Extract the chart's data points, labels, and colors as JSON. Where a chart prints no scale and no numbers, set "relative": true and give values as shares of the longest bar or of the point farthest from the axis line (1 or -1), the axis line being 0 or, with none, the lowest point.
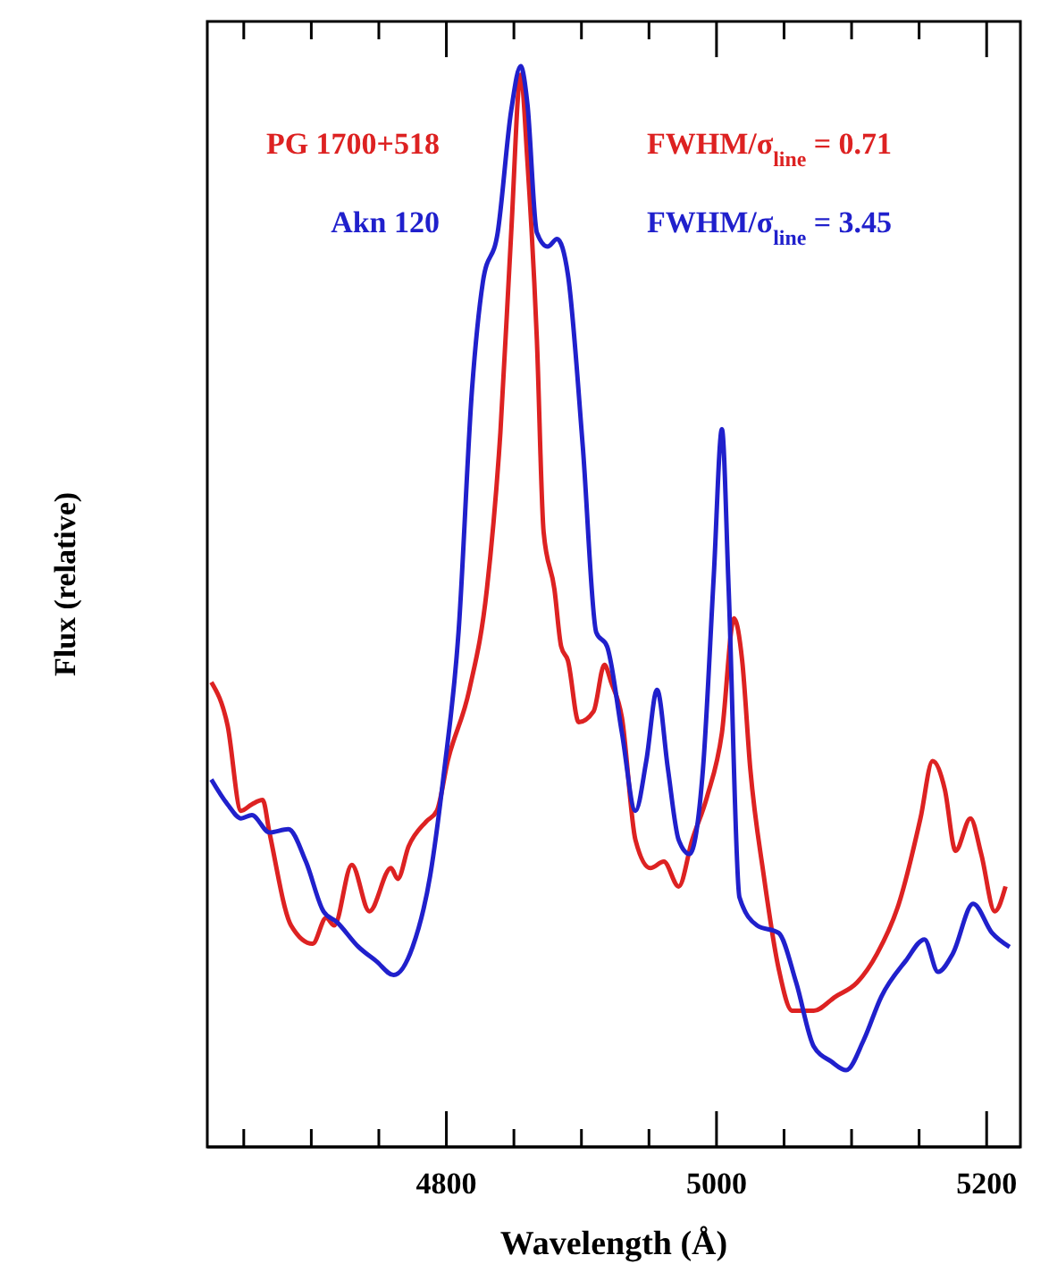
{
  "chart_data": {
    "type": "line",
    "relative": true,
    "xlabel": "Wavelength (Å)",
    "ylabel": "Flux (relative)",
    "xlim": [
      4623,
      5225
    ],
    "xticks": [
      {
        "value": 4650,
        "label": null
      },
      {
        "value": 4700,
        "label": null
      },
      {
        "value": 4750,
        "label": null
      },
      4800,
      {
        "value": 4850,
        "label": null
      },
      {
        "value": 4900,
        "label": null
      },
      {
        "value": 4950,
        "label": null
      },
      5000,
      {
        "value": 5050,
        "label": null
      },
      {
        "value": 5100,
        "label": null
      },
      {
        "value": 5150,
        "label": null
      },
      5200
    ],
    "legend": "top left",
    "grid": false,
    "marker": "none",
    "line_style": "solid",
    "annotations": [
      "FWHM/σ$_{line}$ = 0.71",
      "FWHM/σ$_{line}$ = 3.45"
    ],
    "series": [
      {
        "name": "PG 1700+518",
        "color": "#dd2222",
        "x": [
          4626,
          4638,
          4648,
          4656,
          4664,
          4669,
          4685,
          4701,
          4711,
          4717,
          4730,
          4743,
          4759,
          4764,
          4772,
          4785,
          4793,
          4801,
          4817,
          4830,
          4840,
          4848,
          4855,
          4860,
          4867,
          4872,
          4880,
          4885,
          4890,
          4898,
          4909,
          4917,
          4922,
          4930,
          4940,
          4951,
          4961,
          4972,
          4982,
          4993,
          5004,
          5013,
          5019,
          5025,
          5035,
          5046,
          5056,
          5072,
          5088,
          5104,
          5119,
          5135,
          5151,
          5160,
          5169,
          5177,
          5188,
          5196,
          5206,
          5214
        ],
        "values": [
          0.43,
          0.39,
          0.311,
          0.317,
          0.321,
          0.291,
          0.205,
          0.188,
          0.212,
          0.205,
          0.261,
          0.218,
          0.258,
          0.248,
          0.278,
          0.301,
          0.311,
          0.357,
          0.423,
          0.516,
          0.661,
          0.846,
          0.992,
          0.912,
          0.747,
          0.569,
          0.516,
          0.463,
          0.45,
          0.393,
          0.403,
          0.446,
          0.43,
          0.397,
          0.284,
          0.258,
          0.264,
          0.241,
          0.284,
          0.324,
          0.383,
          0.489,
          0.45,
          0.35,
          0.251,
          0.165,
          0.126,
          0.126,
          0.139,
          0.152,
          0.179,
          0.225,
          0.304,
          0.357,
          0.331,
          0.274,
          0.304,
          0.271,
          0.218,
          0.241
        ]
      },
      {
        "name": "Akn 120",
        "color": "#2020cc",
        "x": [
          4626,
          4638,
          4648,
          4656,
          4669,
          4683,
          4696,
          4709,
          4719,
          4735,
          4748,
          4761,
          4775,
          4788,
          4798,
          4809,
          4819,
          4827,
          4838,
          4848,
          4855,
          4860,
          4867,
          4875,
          4882,
          4890,
          4901,
          4911,
          4919,
          4930,
          4940,
          4948,
          4956,
          4964,
          4972,
          4980,
          4990,
          4998,
          5004,
          5009,
          5017,
          5030,
          5046,
          5059,
          5072,
          5085,
          5096,
          5109,
          5122,
          5140,
          5154,
          5164,
          5175,
          5190,
          5204,
          5217
        ],
        "values": [
          0.34,
          0.317,
          0.304,
          0.307,
          0.291,
          0.294,
          0.264,
          0.218,
          0.208,
          0.185,
          0.172,
          0.159,
          0.185,
          0.251,
          0.344,
          0.476,
          0.701,
          0.8,
          0.846,
          0.959,
          1,
          0.965,
          0.846,
          0.833,
          0.84,
          0.807,
          0.648,
          0.476,
          0.463,
          0.383,
          0.311,
          0.357,
          0.423,
          0.35,
          0.284,
          0.271,
          0.35,
          0.529,
          0.664,
          0.516,
          0.231,
          0.205,
          0.198,
          0.152,
          0.093,
          0.079,
          0.071,
          0.099,
          0.139,
          0.172,
          0.192,
          0.162,
          0.179,
          0.225,
          0.198,
          0.185
        ]
      }
    ]
  }
}
